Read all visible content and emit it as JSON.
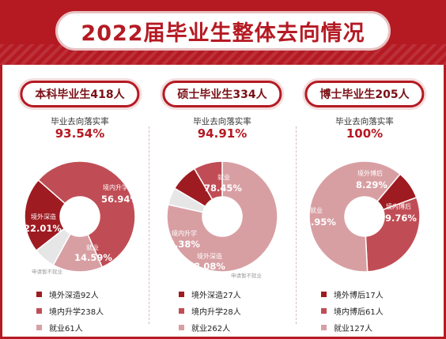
{
  "title": "2022届毕业生整体去向情况",
  "colors": {
    "accent": "#b51a23",
    "dark": "#9e1b22",
    "medium": "#c04d55",
    "light": "#d89fa3",
    "pale": "#e6e6e6"
  },
  "rate_label": "毕业去向落实率",
  "groups": [
    {
      "heading": "本科毕业生418人",
      "rate": "93.54%",
      "segments": [
        {
          "name": "境外深造",
          "value": 22.01,
          "label": "22.01%",
          "color": "#9e1b22"
        },
        {
          "name": "境内升学",
          "value": 56.94,
          "label": "56.94%",
          "color": "#c04d55"
        },
        {
          "name": "就业",
          "value": 14.59,
          "label": "14.59%",
          "color": "#d89fa3"
        },
        {
          "name": "申请暂不就业",
          "value": 6.46,
          "label": "",
          "color": "#e6e6e6"
        }
      ],
      "legend": [
        "境外深造92人",
        "境内升学238人",
        "就业61人"
      ]
    },
    {
      "heading": "硕士毕业生334人",
      "rate": "94.91%",
      "segments": [
        {
          "name": "就业",
          "value": 78.45,
          "label": "78.45%",
          "color": "#d89fa3"
        },
        {
          "name": "申请暂不就业",
          "value": 5.09,
          "label": "",
          "color": "#e6e6e6"
        },
        {
          "name": "境外深造",
          "value": 8.08,
          "label": "8.08%",
          "color": "#9e1b22"
        },
        {
          "name": "境内升学",
          "value": 8.38,
          "label": "8.38%",
          "color": "#c04d55"
        }
      ],
      "legend": [
        "境外深造27人",
        "境内升学28人",
        "就业262人"
      ]
    },
    {
      "heading": "博士毕业生205人",
      "rate": "100%",
      "segments": [
        {
          "name": "境外博后",
          "value": 8.29,
          "label": "8.29%",
          "color": "#9e1b22"
        },
        {
          "name": "境内博后",
          "value": 29.76,
          "label": "29.76%",
          "color": "#c04d55"
        },
        {
          "name": "就业",
          "value": 61.95,
          "label": "61.95%",
          "color": "#d89fa3"
        }
      ],
      "legend": [
        "境外博后17人",
        "境内博后61人",
        "就业127人"
      ]
    }
  ],
  "chart_data": [
    {
      "type": "pie",
      "title": "本科毕业生418人",
      "subtitle": "毕业去向落实率 93.54%",
      "categories": [
        "境外深造",
        "境内升学",
        "就业",
        "申请暂不就业"
      ],
      "values": [
        22.01,
        56.94,
        14.59,
        6.46
      ],
      "legend": [
        "境外深造92人",
        "境内升学238人",
        "就业61人"
      ]
    },
    {
      "type": "pie",
      "title": "硕士毕业生334人",
      "subtitle": "毕业去向落实率 94.91%",
      "categories": [
        "就业",
        "申请暂不就业",
        "境外深造",
        "境内升学"
      ],
      "values": [
        78.45,
        5.09,
        8.08,
        8.38
      ],
      "legend": [
        "境外深造27人",
        "境内升学28人",
        "就业262人"
      ]
    },
    {
      "type": "pie",
      "title": "博士毕业生205人",
      "subtitle": "毕业去向落实率 100%",
      "categories": [
        "境外博后",
        "境内博后",
        "就业"
      ],
      "values": [
        8.29,
        29.76,
        61.95
      ],
      "legend": [
        "境外博后17人",
        "境内博后61人",
        "就业127人"
      ]
    }
  ]
}
